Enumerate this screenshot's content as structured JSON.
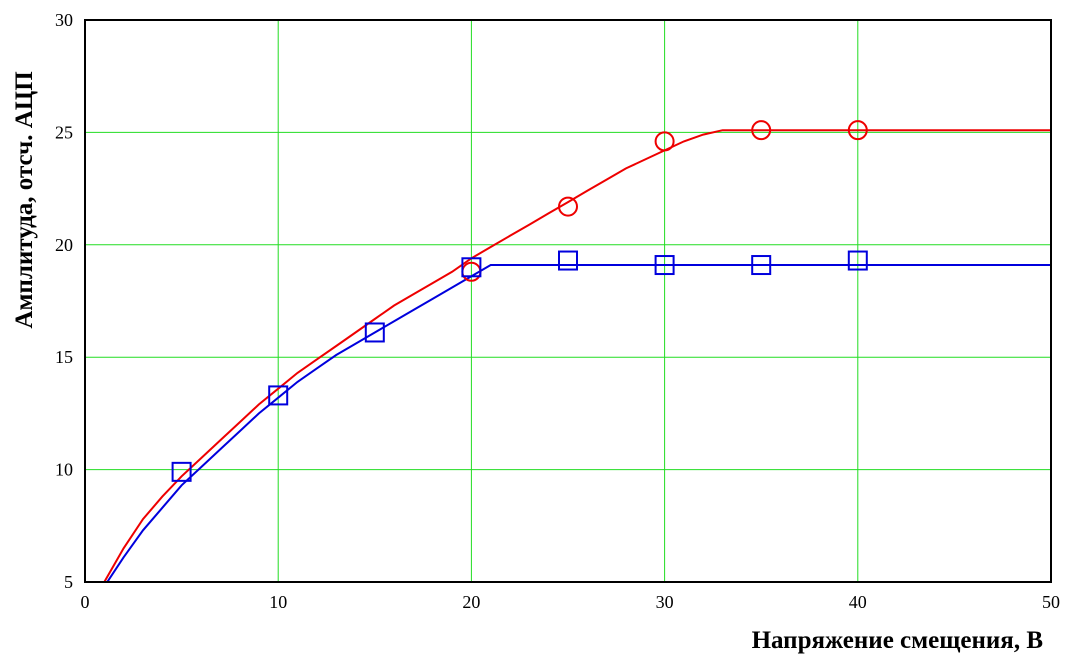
{
  "chart_data": {
    "type": "line",
    "title": "",
    "xlabel": "Напряжение смещения, В",
    "ylabel": "Амплитуда, отсч. АЦП",
    "xlim": [
      0,
      50
    ],
    "ylim": [
      5,
      30
    ],
    "x_ticks": [
      0,
      10,
      20,
      30,
      40,
      50
    ],
    "y_ticks": [
      5,
      10,
      15,
      20,
      25,
      30
    ],
    "grid": true,
    "grid_color": "#22dd22",
    "series": [
      {
        "kind": "line",
        "color": "#ee0000",
        "x": [
          1,
          2,
          3,
          4,
          5,
          6,
          7,
          8,
          9,
          10,
          11,
          12,
          13,
          14,
          15,
          16,
          17,
          18,
          19,
          20,
          21,
          22,
          23,
          24,
          25,
          26,
          27,
          28,
          29,
          30,
          31,
          32,
          33,
          35,
          40,
          45,
          50
        ],
        "y": [
          5,
          6.5,
          7.8,
          8.8,
          9.7,
          10.5,
          11.3,
          12.1,
          12.9,
          13.6,
          14.3,
          14.9,
          15.5,
          16.1,
          16.7,
          17.3,
          17.8,
          18.3,
          18.8,
          19.4,
          19.9,
          20.4,
          20.9,
          21.4,
          21.9,
          22.4,
          22.9,
          23.4,
          23.8,
          24.2,
          24.6,
          24.9,
          25.1,
          25.1,
          25.1,
          25.1,
          25.1
        ]
      },
      {
        "kind": "markers",
        "marker": "circle",
        "color": "#ee0000",
        "x": [
          20,
          25,
          30,
          35,
          40
        ],
        "y": [
          18.8,
          21.7,
          24.6,
          25.1,
          25.1
        ]
      },
      {
        "kind": "line",
        "color": "#0000dd",
        "x": [
          1,
          2,
          3,
          4,
          5,
          6,
          7,
          8,
          9,
          10,
          11,
          12,
          13,
          14,
          15,
          16,
          17,
          18,
          19,
          20,
          21,
          25,
          30,
          35,
          40,
          45,
          50
        ],
        "y": [
          4.8,
          6.1,
          7.3,
          8.3,
          9.3,
          10.1,
          10.9,
          11.7,
          12.5,
          13.2,
          13.9,
          14.5,
          15.1,
          15.6,
          16.1,
          16.6,
          17.1,
          17.6,
          18.1,
          18.6,
          19.1,
          19.1,
          19.1,
          19.1,
          19.1,
          19.1,
          19.1
        ]
      },
      {
        "kind": "markers",
        "marker": "square",
        "color": "#0000dd",
        "x": [
          5,
          10,
          15,
          20,
          25,
          30,
          35,
          40
        ],
        "y": [
          9.9,
          13.3,
          16.1,
          19.0,
          19.3,
          19.1,
          19.1,
          19.3
        ]
      }
    ]
  }
}
